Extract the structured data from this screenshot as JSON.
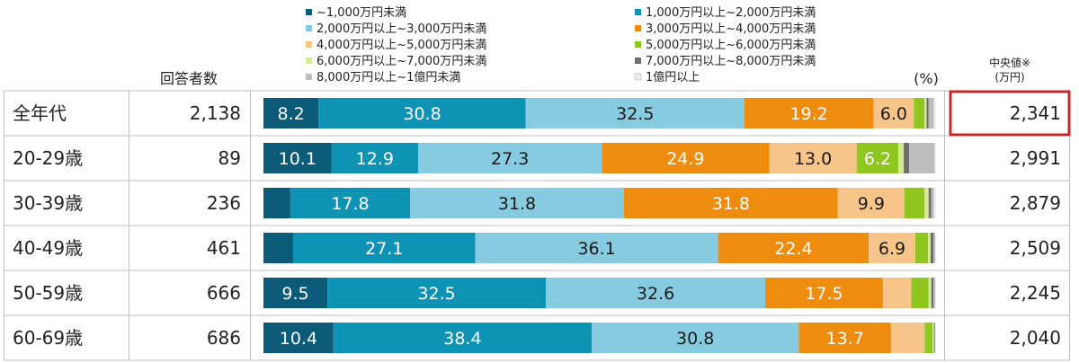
{
  "chart_data": {
    "type": "bar",
    "orientation": "horizontal-stacked-100",
    "unit_label": "(%)",
    "count_header": "回答者数",
    "median_header_line1": "中央値※",
    "median_header_line2": "(万円)",
    "legend": [
      {
        "name": "~1,000万円未満",
        "color": "#0b5a78"
      },
      {
        "name": "1,000万円以上~2,000万円未満",
        "color": "#0f93b4"
      },
      {
        "name": "2,000万円以上~3,000万円未満",
        "color": "#86cbdf"
      },
      {
        "name": "3,000万円以上~4,000万円未満",
        "color": "#ee8c10"
      },
      {
        "name": "4,000万円以上~5,000万円未満",
        "color": "#f7c48a"
      },
      {
        "name": "5,000万円以上~6,000万円未満",
        "color": "#8fc620"
      },
      {
        "name": "6,000万円以上~7,000万円未満",
        "color": "#d6e89a"
      },
      {
        "name": "7,000万円以上~8,000万円未満",
        "color": "#6e6e6e"
      },
      {
        "name": "8,000万円以上~1億円未満",
        "color": "#bdbdbd"
      },
      {
        "name": "1億円以上",
        "color": "#eeeeee"
      }
    ],
    "rows": [
      {
        "label": "全年代",
        "count": "2,138",
        "median": "2,341",
        "highlight": true,
        "values": [
          8.2,
          30.8,
          32.5,
          19.2,
          6.0,
          1.6,
          0.3,
          0.3,
          0.8,
          0.3
        ],
        "labels": [
          "8.2",
          "30.8",
          "32.5",
          "19.2",
          "6.0",
          "",
          "",
          "",
          "",
          ""
        ]
      },
      {
        "label": "20-29歳",
        "count": "89",
        "median": "2,991",
        "highlight": false,
        "values": [
          10.1,
          12.9,
          27.3,
          24.9,
          13.0,
          6.2,
          0.8,
          0.8,
          3.8,
          0.2
        ],
        "labels": [
          "10.1",
          "12.9",
          "27.3",
          "24.9",
          "13.0",
          "6.2",
          "",
          "",
          "",
          ""
        ]
      },
      {
        "label": "30-39歳",
        "count": "236",
        "median": "2,879",
        "highlight": false,
        "values": [
          4.0,
          17.8,
          31.8,
          31.8,
          9.9,
          3.0,
          0.6,
          0.4,
          0.4,
          0.3
        ],
        "labels": [
          "",
          "17.8",
          "31.8",
          "31.8",
          "9.9",
          "",
          "",
          "",
          "",
          ""
        ]
      },
      {
        "label": "40-49歳",
        "count": "461",
        "median": "2,509",
        "highlight": false,
        "values": [
          4.4,
          27.1,
          36.1,
          22.4,
          6.9,
          1.9,
          0.4,
          0.4,
          0.3,
          0.1
        ],
        "labels": [
          "",
          "27.1",
          "36.1",
          "22.4",
          "6.9",
          "",
          "",
          "",
          "",
          ""
        ]
      },
      {
        "label": "50-59歳",
        "count": "666",
        "median": "2,245",
        "highlight": false,
        "values": [
          9.5,
          32.5,
          32.6,
          17.5,
          4.2,
          2.6,
          0.4,
          0.3,
          0.3,
          0.1
        ],
        "labels": [
          "9.5",
          "32.5",
          "32.6",
          "17.5",
          "",
          "",
          "",
          "",
          "",
          ""
        ]
      },
      {
        "label": "60-69歳",
        "count": "686",
        "median": "2,040",
        "highlight": false,
        "values": [
          10.4,
          38.4,
          30.8,
          13.7,
          5.0,
          1.2,
          0.2,
          0.1,
          0.1,
          0.1
        ],
        "labels": [
          "10.4",
          "38.4",
          "30.8",
          "13.7",
          "",
          "",
          "",
          "",
          "",
          ""
        ]
      }
    ],
    "label_colors": [
      "#ffffff",
      "#ffffff",
      "#1a1a1a",
      "#ffffff",
      "#1a1a1a",
      "#ffffff",
      "#1a1a1a",
      "#ffffff",
      "#1a1a1a",
      "#1a1a1a"
    ],
    "highlight_color": "#c0282b"
  }
}
